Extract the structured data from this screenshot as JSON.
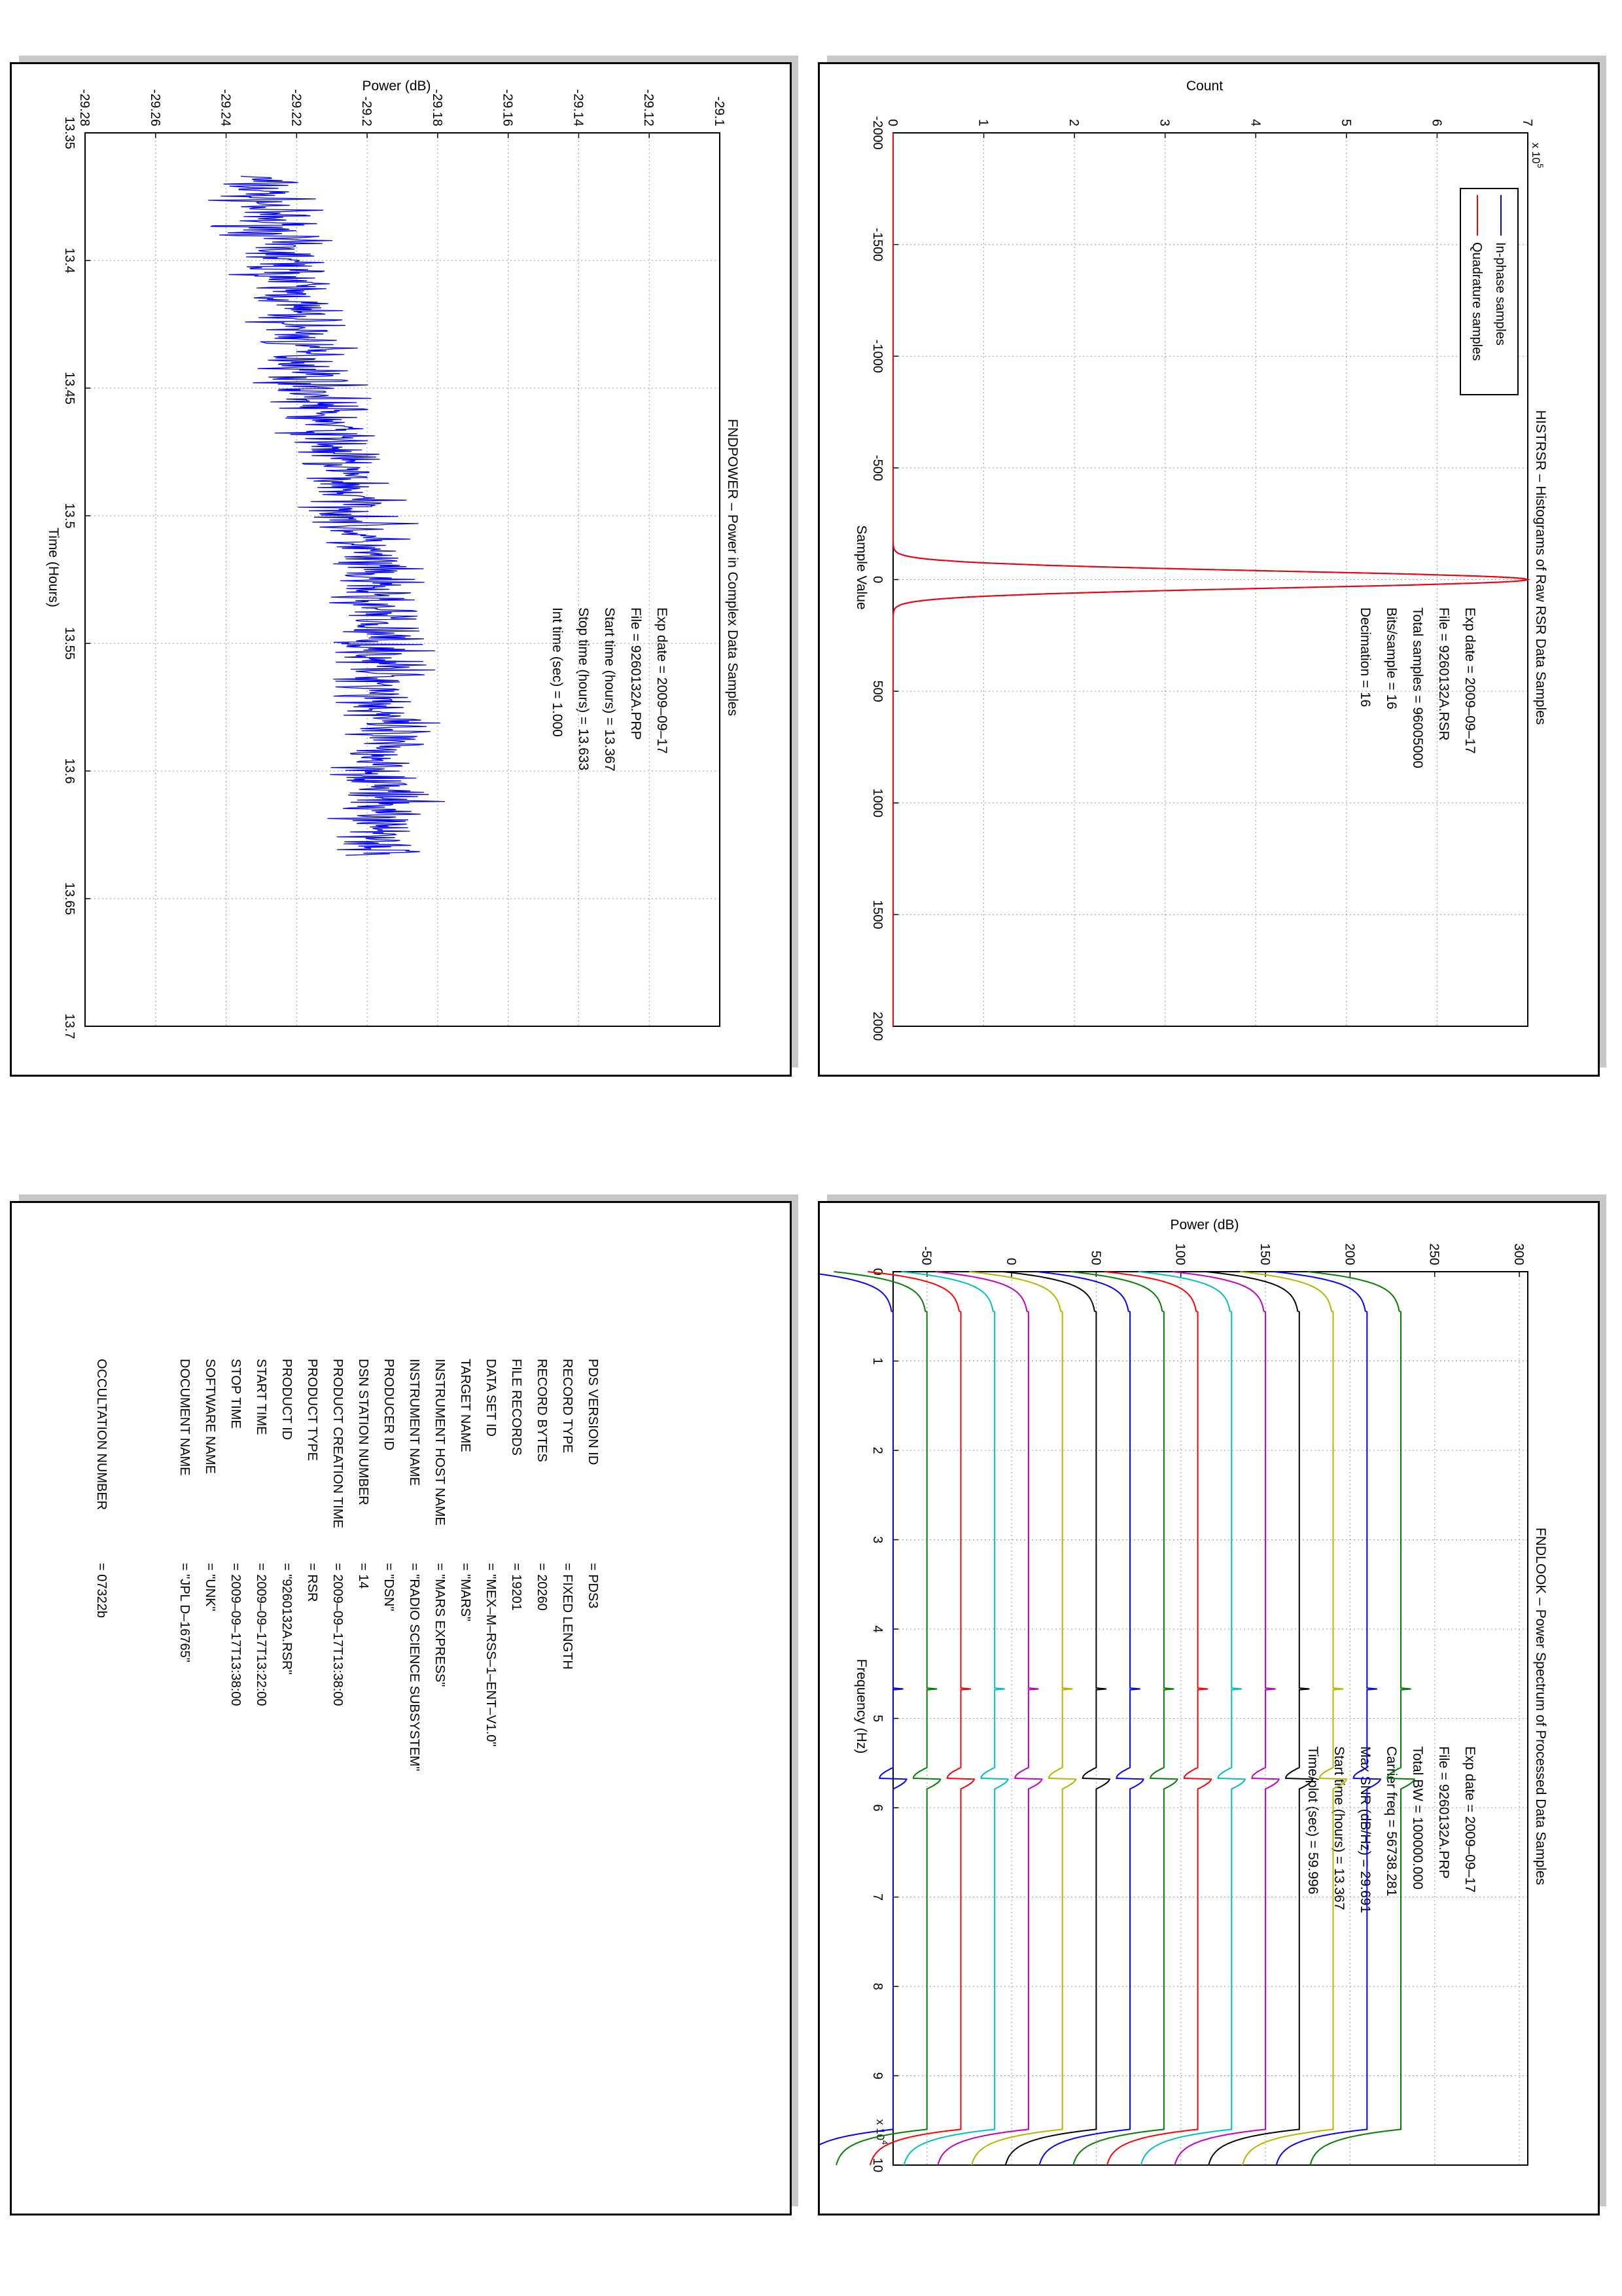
{
  "chart_data": [
    {
      "type": "line",
      "title": "HISTRSR – Histograms of Raw RSR Data Samples",
      "xlabel": "Sample Value",
      "ylabel": "Count",
      "y_multiplier": "x 10^5",
      "xlim": [
        -2000,
        2000
      ],
      "ylim": [
        0,
        7
      ],
      "xticks": [
        "-2000",
        "-1500",
        "-1000",
        "-500",
        "0",
        "500",
        "1000",
        "1500",
        "2000"
      ],
      "yticks": [
        "0",
        "1",
        "2",
        "3",
        "4",
        "5",
        "6",
        "7"
      ],
      "grid": true,
      "legend": "top-left",
      "series": [
        {
          "name": "In-phase samples",
          "color": "#0000ff",
          "shape": "gaussian",
          "peak_x": 0,
          "peak_y": 7.0,
          "sigma": 38
        },
        {
          "name": "Quadrature samples",
          "color": "#ff0000",
          "shape": "gaussian",
          "peak_x": 0,
          "peak_y": 7.0,
          "sigma": 38
        }
      ],
      "annotation": [
        {
          "label": "Exp date",
          "value": "2009–09–17"
        },
        {
          "label": "File",
          "value": "9260132A.RSR"
        },
        {
          "label": "Total samples",
          "value": "96005000"
        },
        {
          "label": "Bits/sample",
          "value": "16"
        },
        {
          "label": "Decimation",
          "value": "16"
        }
      ]
    },
    {
      "type": "line",
      "title": "FNDPOWER – Power in Complex Data Samples",
      "xlabel": "Time (Hours)",
      "ylabel": "Power (dB)",
      "xlim": [
        13.35,
        13.7
      ],
      "ylim": [
        -29.28,
        -29.1
      ],
      "xticks": [
        "13.35",
        "13.4",
        "13.45",
        "13.5",
        "13.55",
        "13.6",
        "13.65",
        "13.7"
      ],
      "yticks": [
        "-29.28",
        "-29.26",
        "-29.24",
        "-29.22",
        "-29.2",
        "-29.18",
        "-29.16",
        "-29.14",
        "-29.12",
        "-29.1"
      ],
      "grid": true,
      "series": [
        {
          "name": "",
          "color": "#0000ff",
          "x_start": 13.367,
          "x_end": 13.633,
          "trend": [
            [
              13.367,
              -29.232
            ],
            [
              13.4,
              -29.224
            ],
            [
              13.45,
              -29.215
            ],
            [
              13.5,
              -29.203
            ],
            [
              13.55,
              -29.196
            ],
            [
              13.6,
              -29.196
            ],
            [
              13.633,
              -29.196
            ]
          ],
          "noise_amplitude": 0.012
        }
      ],
      "annotation": [
        {
          "label": "Exp date",
          "value": "2009–09–17"
        },
        {
          "label": "File",
          "value": "9260132A.PRP"
        },
        {
          "label": "Start time (hours)",
          "value": "13.367"
        },
        {
          "label": "Stop time (hours)",
          "value": "13.633"
        },
        {
          "label": "Int time (sec)",
          "value": "1.000"
        }
      ]
    },
    {
      "type": "line",
      "title": "FNDLOOK – Power Spectrum of Processed Data Samples",
      "xlabel": "Frequency (Hz)",
      "ylabel": "Power (dB)",
      "x_multiplier": "x 10^4",
      "xlim": [
        0,
        10
      ],
      "ylim": [
        -70,
        305
      ],
      "xticks": [
        "0",
        "1",
        "2",
        "3",
        "4",
        "5",
        "6",
        "7",
        "8",
        "9",
        "10"
      ],
      "yticks": [
        "-50",
        "0",
        "50",
        "100",
        "150",
        "200",
        "250",
        "300"
      ],
      "grid": true,
      "series": [
        {
          "color": "#008000",
          "base": 230
        },
        {
          "color": "#0000ff",
          "base": 210
        },
        {
          "color": "#b5b500",
          "base": 190
        },
        {
          "color": "#000000",
          "base": 170
        },
        {
          "color": "#bf00bf",
          "base": 150
        },
        {
          "color": "#00bfbf",
          "base": 130
        },
        {
          "color": "#ff0000",
          "base": 110
        },
        {
          "color": "#008000",
          "base": 90
        },
        {
          "color": "#0000ff",
          "base": 70
        },
        {
          "color": "#000000",
          "base": 50
        },
        {
          "color": "#b5b500",
          "base": 30
        },
        {
          "color": "#bf00bf",
          "base": 10
        },
        {
          "color": "#00bfbf",
          "base": -10
        },
        {
          "color": "#ff0000",
          "base": -30
        },
        {
          "color": "#008000",
          "base": -50
        },
        {
          "color": "#0000ff",
          "base": -70
        }
      ],
      "features": {
        "carrier_spike_x": 4.67,
        "sideband_x": 5.67,
        "rolloff_start": 9.6
      },
      "annotation": [
        {
          "label": "Exp date",
          "value": "2009–09–17"
        },
        {
          "label": "File",
          "value": "9260132A.PRP"
        },
        {
          "label": "Total BW",
          "value": "100000.000"
        },
        {
          "label": "Carrier freq",
          "value": "56738.281"
        },
        {
          "label": "Max SNR (dB/Hz)",
          "value": "29.691"
        },
        {
          "label": "Start time (hours)",
          "value": "13.367"
        },
        {
          "label": "Time/plot (sec)",
          "value": "59.996"
        }
      ]
    }
  ],
  "label_table": {
    "rows": [
      {
        "key": "PDS VERSION ID",
        "value": "PDS3"
      },
      {
        "key": "RECORD TYPE",
        "value": "FIXED LENGTH"
      },
      {
        "key": "RECORD BYTES",
        "value": "20260"
      },
      {
        "key": "FILE RECORDS",
        "value": "19201"
      },
      {
        "key": "DATA SET ID",
        "value": "\"MEX–M–RSS–1–ENT–V1.0\""
      },
      {
        "key": "TARGET NAME",
        "value": "\"MARS\""
      },
      {
        "key": "INSTRUMENT HOST NAME",
        "value": "\"MARS EXPRESS\""
      },
      {
        "key": "INSTRUMENT NAME",
        "value": "\"RADIO SCIENCE SUBSYSTEM\""
      },
      {
        "key": "PRODUCER ID",
        "value": "\"DSN\""
      },
      {
        "key": "DSN STATION NUMBER",
        "value": "14"
      },
      {
        "key": "PRODUCT CREATION TIME",
        "value": "2009–09–17T13:38:00"
      },
      {
        "key": "PRODUCT TYPE",
        "value": "RSR"
      },
      {
        "key": "PRODUCT ID",
        "value": "\"9260132A.RSR\""
      },
      {
        "key": "START TIME",
        "value": "2009–09–17T13:22:00"
      },
      {
        "key": "STOP TIME",
        "value": "2009–09–17T13:38:00"
      },
      {
        "key": "SOFTWARE NAME",
        "value": "\"UNK\""
      },
      {
        "key": "DOCUMENT NAME",
        "value": "\"JPL D–16765\""
      }
    ],
    "occultation": {
      "key": "OCCULTATION NUMBER",
      "value": "07322b"
    }
  }
}
